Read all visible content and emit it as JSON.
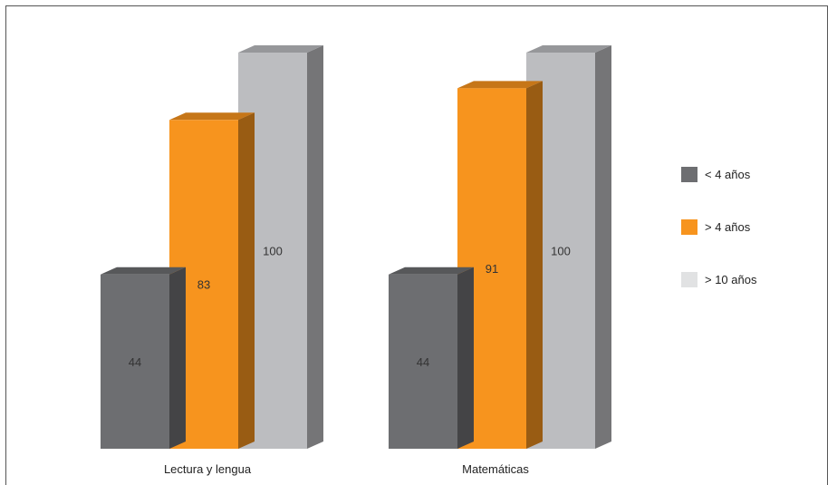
{
  "chart_data": {
    "type": "bar",
    "categories": [
      "Lectura y lengua",
      "Matemáticas"
    ],
    "series": [
      {
        "name": "< 4 años",
        "values": [
          44,
          44
        ],
        "color": "#6d6e71"
      },
      {
        "name": "> 4 años",
        "values": [
          83,
          91
        ],
        "color": "#f7941e"
      },
      {
        "name": "> 10 años",
        "values": [
          100,
          100
        ],
        "color": "#bcbdc0"
      }
    ],
    "ylim": [
      0,
      100
    ],
    "data_labels": true,
    "grid": false,
    "legend_position": "right",
    "three_d": true
  }
}
